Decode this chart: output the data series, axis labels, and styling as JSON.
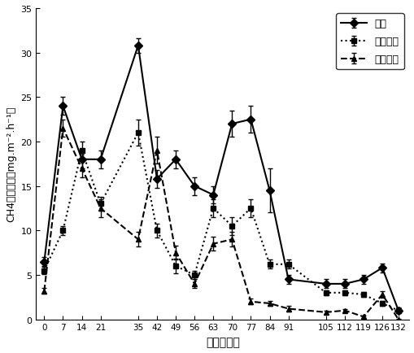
{
  "x": [
    0,
    7,
    14,
    21,
    35,
    42,
    49,
    56,
    63,
    70,
    77,
    84,
    91,
    105,
    112,
    119,
    126,
    132
  ],
  "series1_name": "长淥",
  "series1_y": [
    6.5,
    24.0,
    18.0,
    18.0,
    30.8,
    15.8,
    18.0,
    15.0,
    14.0,
    22.0,
    22.5,
    14.5,
    4.5,
    4.0,
    4.0,
    4.5,
    5.8,
    1.0
  ],
  "series1_err": [
    0.5,
    1.0,
    1.0,
    1.0,
    0.8,
    1.0,
    1.0,
    1.0,
    1.0,
    1.5,
    1.5,
    2.5,
    0.5,
    0.5,
    0.5,
    0.5,
    0.5,
    0.3
  ],
  "series2_name": "长淥增氧",
  "series2_y": [
    5.5,
    10.0,
    19.0,
    13.0,
    21.0,
    10.0,
    6.0,
    5.0,
    12.5,
    10.5,
    12.5,
    6.2,
    6.2,
    3.0,
    3.0,
    2.8,
    1.8,
    1.0
  ],
  "series2_err": [
    0.4,
    0.5,
    1.0,
    0.8,
    1.5,
    0.8,
    0.8,
    0.5,
    1.0,
    1.0,
    1.0,
    0.5,
    0.5,
    0.3,
    0.3,
    0.3,
    0.3,
    0.2
  ],
  "series3_name": "干干湿湿",
  "series3_y": [
    3.2,
    21.5,
    17.0,
    12.5,
    9.0,
    19.0,
    7.5,
    4.0,
    8.5,
    9.0,
    2.0,
    1.8,
    1.2,
    0.8,
    1.0,
    0.3,
    2.8,
    0.0
  ],
  "series3_err": [
    0.3,
    1.0,
    1.0,
    1.0,
    0.8,
    1.5,
    0.8,
    0.5,
    0.8,
    0.8,
    0.3,
    0.3,
    0.3,
    0.2,
    0.2,
    0.15,
    0.4,
    0.1
  ],
  "xlabel": "移栽后天数",
  "ylabel_line1": "CH4排放通量",
  "ylabel_line2": "(mg.m⁻².h⁻¹)",
  "ylim": [
    0,
    35
  ],
  "yticks": [
    0,
    5,
    10,
    15,
    20,
    25,
    30,
    35
  ],
  "color": "#000000"
}
